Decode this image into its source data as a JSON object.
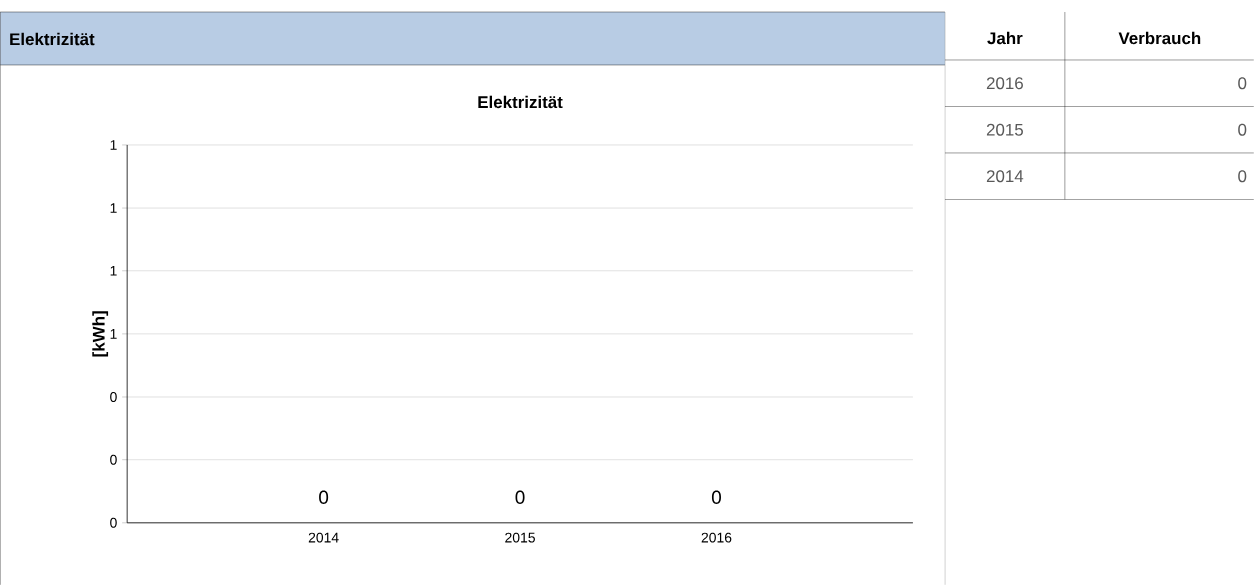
{
  "chart_data": {
    "type": "bar",
    "title": "Elektrizität",
    "ylabel": "[kWh]",
    "categories": [
      "2014",
      "2015",
      "2016"
    ],
    "values": [
      0,
      0,
      0
    ],
    "value_labels": [
      "0",
      "0",
      "0"
    ],
    "ylim": [
      0,
      1
    ],
    "yticks": [
      {
        "value": 0,
        "label": "0"
      },
      {
        "value": 0.167,
        "label": "0"
      },
      {
        "value": 0.333,
        "label": "0"
      },
      {
        "value": 0.5,
        "label": "1"
      },
      {
        "value": 0.667,
        "label": "1"
      },
      {
        "value": 0.833,
        "label": "1"
      },
      {
        "value": 1,
        "label": "1"
      }
    ],
    "grid": "y",
    "annotations": [
      "Elektrizität",
      "Jahr",
      "Verbrauch",
      "0",
      "0",
      "0"
    ]
  }
}
